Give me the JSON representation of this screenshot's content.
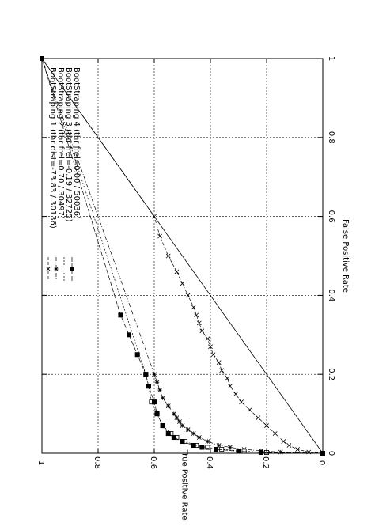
{
  "chart_data": {
    "type": "line",
    "orientation": "rotated-90-clockwise",
    "xlabel": "False Positive Rate",
    "ylabel": "True Positive Rate",
    "xlim": [
      0,
      1
    ],
    "ylim": [
      0,
      1
    ],
    "x_ticks": [
      "0",
      "0.2",
      "0.4",
      "0.6",
      "0.8",
      "1"
    ],
    "y_ticks": [
      "0",
      "0.2",
      "0.4",
      "0.6",
      "0.8",
      "1"
    ],
    "grid": true,
    "legend_position": "top-left",
    "diagonal": {
      "x": [
        0,
        1
      ],
      "y": [
        0,
        1
      ]
    },
    "series": [
      {
        "name": "BootStraping 1 (thr dist=-73.83 / 30136)",
        "marker": "x",
        "line_style": "dashed",
        "x": [
          0.0,
          0.003,
          0.01,
          0.02,
          0.03,
          0.05,
          0.07,
          0.09,
          0.11,
          0.13,
          0.15,
          0.17,
          0.19,
          0.21,
          0.23,
          0.25,
          0.27,
          0.29,
          0.31,
          0.33,
          0.35,
          0.37,
          0.4,
          0.43,
          0.46,
          0.5,
          0.55,
          0.6,
          1.0
        ],
        "y": [
          0.0,
          0.05,
          0.09,
          0.12,
          0.14,
          0.17,
          0.2,
          0.23,
          0.26,
          0.29,
          0.31,
          0.33,
          0.34,
          0.36,
          0.37,
          0.39,
          0.4,
          0.41,
          0.43,
          0.44,
          0.45,
          0.46,
          0.48,
          0.5,
          0.52,
          0.55,
          0.58,
          0.6,
          1.0
        ]
      },
      {
        "name": "BootStraping 2 (thr frel=0.70 / 30497)",
        "marker": "*",
        "line_style": "dashed",
        "x": [
          0.0,
          0.003,
          0.006,
          0.01,
          0.015,
          0.02,
          0.03,
          0.04,
          0.05,
          0.06,
          0.07,
          0.08,
          0.09,
          0.1,
          0.12,
          0.14,
          0.16,
          0.18,
          0.2,
          1.0
        ],
        "y": [
          0.0,
          0.15,
          0.22,
          0.28,
          0.33,
          0.37,
          0.41,
          0.44,
          0.46,
          0.48,
          0.5,
          0.51,
          0.52,
          0.53,
          0.55,
          0.57,
          0.58,
          0.59,
          0.6,
          1.0
        ]
      },
      {
        "name": "BootStraping 3 (thr frel=-0.19 / 32725)",
        "marker": "square-open",
        "line_style": "dashed",
        "x": [
          0.0,
          0.002,
          0.005,
          0.01,
          0.015,
          0.02,
          0.03,
          0.04,
          0.05,
          0.07,
          0.1,
          0.13,
          0.17,
          0.2,
          1.0
        ],
        "y": [
          0.0,
          0.2,
          0.28,
          0.36,
          0.41,
          0.45,
          0.49,
          0.52,
          0.54,
          0.57,
          0.59,
          0.61,
          0.62,
          0.63,
          1.0
        ]
      },
      {
        "name": "BootStraping 4 (thr frel=0.00 / 50036)",
        "marker": "square-filled",
        "line_style": "dashed",
        "x": [
          0.0,
          0.002,
          0.005,
          0.01,
          0.015,
          0.02,
          0.03,
          0.04,
          0.05,
          0.07,
          0.1,
          0.13,
          0.17,
          0.2,
          0.25,
          0.3,
          0.35,
          1.0
        ],
        "y": [
          0.0,
          0.22,
          0.3,
          0.38,
          0.43,
          0.46,
          0.5,
          0.53,
          0.55,
          0.57,
          0.59,
          0.6,
          0.62,
          0.63,
          0.66,
          0.69,
          0.72,
          1.0
        ]
      }
    ]
  }
}
